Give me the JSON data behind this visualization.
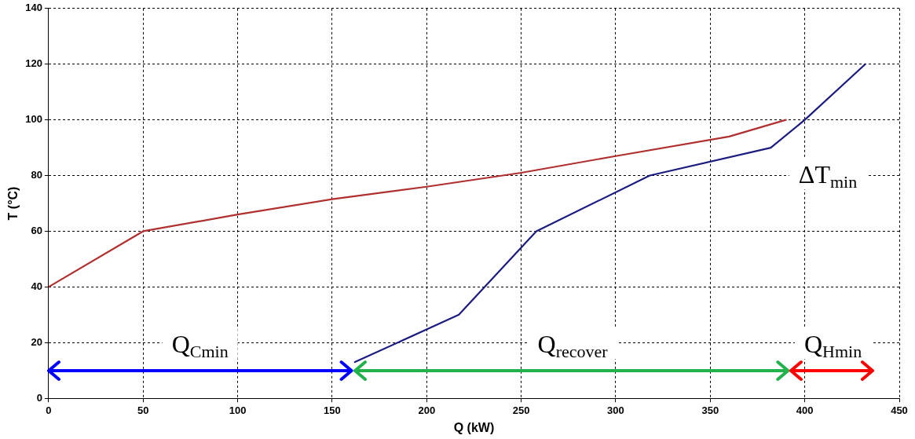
{
  "chart_data": {
    "type": "line",
    "xlabel": "Q (kW)",
    "ylabel": "T (°C)",
    "xlim": [
      0,
      450
    ],
    "xticks": [
      0,
      50,
      100,
      150,
      200,
      250,
      300,
      350,
      400,
      450
    ],
    "ylim": [
      0,
      140
    ],
    "yticks": [
      0,
      20,
      40,
      60,
      80,
      100,
      120,
      140
    ],
    "grid": true,
    "legend": false,
    "marker": "none",
    "line_style": "solid",
    "series": [
      {
        "color": "#b03030",
        "x": [
          0,
          50,
          100,
          150,
          200,
          250,
          300,
          360,
          390
        ],
        "values": [
          40,
          60,
          66,
          71.5,
          76,
          81,
          87,
          94,
          100
        ]
      },
      {
        "color": "#1c1c80",
        "x": [
          162,
          217,
          258,
          318,
          382,
          400,
          432
        ],
        "values": [
          13,
          30,
          60,
          80,
          90,
          100,
          120
        ]
      }
    ],
    "annotations": [
      "Q$_{Cmin}$",
      "Q$_{recover}$",
      "Q$_{Hmin}$",
      "ΔT$_{min}$"
    ]
  }
}
